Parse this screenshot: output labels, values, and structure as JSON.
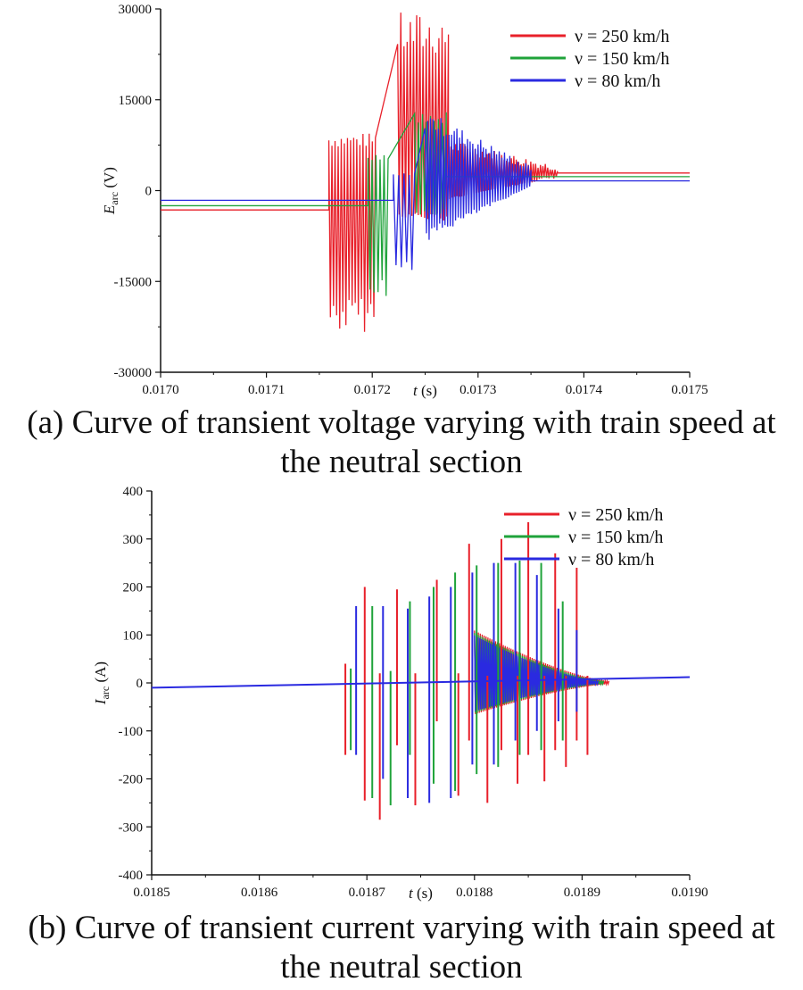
{
  "chart_data": [
    {
      "id": "a",
      "type": "line",
      "ylabel_symbol": "E",
      "ylabel_sub": "arc",
      "ylabel_unit": "(V)",
      "xlabel_symbol": "t",
      "xlabel_unit": "(s)",
      "xlim": [
        0.017,
        0.0175
      ],
      "ylim": [
        -30000,
        30000
      ],
      "xticks": [
        "0.0170",
        "0.0171",
        "0.0172",
        "0.0173",
        "0.0174",
        "0.0175"
      ],
      "yticks": [
        "30000",
        "15000",
        "0",
        "-15000",
        "-30000"
      ],
      "ytick_values": [
        30000,
        15000,
        0,
        -15000,
        -30000
      ],
      "legend": [
        {
          "label": "ν = 250 km/h",
          "color": "#e8202a"
        },
        {
          "label": "ν = 150 km/h",
          "color": "#1fa33a"
        },
        {
          "label": "ν = 80 km/h",
          "color": "#2a2ae0"
        }
      ],
      "series": [
        {
          "name": "ν = 250 km/h",
          "color": "#e8202a",
          "pre_level": -3200,
          "post_level": 2900,
          "bursts": [
            {
              "x0": 0.017159,
              "x1": 0.017203,
              "lo": -23500,
              "hi": 9500,
              "n": 30
            },
            {
              "x0": 0.017224,
              "x1": 0.017272,
              "lo": -5000,
              "hi": 29500,
              "n": 32
            },
            {
              "x0": 0.017272,
              "x1": 0.017375,
              "lo": -1500,
              "hi": 8500,
              "n": 90,
              "decay": true
            }
          ]
        },
        {
          "name": "ν = 150 km/h",
          "color": "#1fa33a",
          "pre_level": -2500,
          "post_level": 2300,
          "bursts": [
            {
              "x0": 0.017196,
              "x1": 0.017215,
              "lo": -19000,
              "hi": 6000,
              "n": 10
            },
            {
              "x0": 0.01724,
              "x1": 0.01727,
              "lo": -4000,
              "hi": 13000,
              "n": 16
            }
          ]
        },
        {
          "name": "ν = 80 km/h",
          "color": "#2a2ae0",
          "pre_level": -1600,
          "post_level": 1600,
          "bursts": [
            {
              "x0": 0.01722,
              "x1": 0.01724,
              "lo": -13500,
              "hi": 3000,
              "n": 8
            },
            {
              "x0": 0.01725,
              "x1": 0.01735,
              "lo": -8500,
              "hi": 13500,
              "n": 80,
              "decay": true
            }
          ]
        }
      ]
    },
    {
      "id": "b",
      "type": "line",
      "ylabel_symbol": "I",
      "ylabel_sub": "arc",
      "ylabel_unit": "(A)",
      "xlabel_symbol": "t",
      "xlabel_unit": "(s)",
      "xlim": [
        0.0185,
        0.019
      ],
      "ylim": [
        -400,
        400
      ],
      "xticks": [
        "0.0185",
        "0.0186",
        "0.0187",
        "0.0188",
        "0.0189",
        "0.0190"
      ],
      "yticks": [
        "400",
        "300",
        "200",
        "100",
        "0",
        "-100",
        "-200",
        "-300",
        "-400"
      ],
      "ytick_values": [
        400,
        300,
        200,
        100,
        0,
        -100,
        -200,
        -300,
        -400
      ],
      "legend": [
        {
          "label": "ν = 250 km/h",
          "color": "#e8202a"
        },
        {
          "label": "ν = 150 km/h",
          "color": "#1fa33a"
        },
        {
          "label": "ν = 80 km/h",
          "color": "#2a2ae0"
        }
      ],
      "baseline": {
        "start": -10,
        "end": 12
      },
      "series": [
        {
          "name": "ν = 250 km/h",
          "color": "#e8202a",
          "spikes": [
            [
              0.01868,
              40,
              -150
            ],
            [
              0.018698,
              200,
              -245
            ],
            [
              0.018712,
              20,
              -285
            ],
            [
              0.018728,
              195,
              -130
            ],
            [
              0.018745,
              20,
              -255
            ],
            [
              0.018765,
              215,
              -80
            ],
            [
              0.018785,
              20,
              -235
            ],
            [
              0.018795,
              290,
              -120
            ],
            [
              0.018812,
              15,
              -250
            ],
            [
              0.018825,
              300,
              -140
            ],
            [
              0.01884,
              15,
              -210
            ],
            [
              0.01885,
              335,
              -150
            ],
            [
              0.018865,
              15,
              -205
            ],
            [
              0.018875,
              270,
              -140
            ],
            [
              0.018885,
              15,
              -175
            ],
            [
              0.018895,
              240,
              -120
            ],
            [
              0.018905,
              15,
              -150
            ]
          ],
          "tail": {
            "x0": 0.0188,
            "x1": 0.018925,
            "amp": 105
          }
        },
        {
          "name": "ν = 150 km/h",
          "color": "#1fa33a",
          "spikes": [
            [
              0.018685,
              30,
              -140
            ],
            [
              0.018705,
              160,
              -240
            ],
            [
              0.018722,
              25,
              -255
            ],
            [
              0.01874,
              170,
              -150
            ],
            [
              0.018762,
              200,
              -210
            ],
            [
              0.018782,
              230,
              -225
            ],
            [
              0.018802,
              245,
              -190
            ],
            [
              0.018822,
              250,
              -175
            ],
            [
              0.018842,
              255,
              -150
            ],
            [
              0.018862,
              250,
              -140
            ],
            [
              0.018882,
              170,
              -120
            ]
          ],
          "tail": {
            "x0": 0.0188,
            "x1": 0.01892,
            "amp": 100
          }
        },
        {
          "name": "ν = 80 km/h",
          "color": "#2a2ae0",
          "spikes": [
            [
              0.01869,
              160,
              -150
            ],
            [
              0.018715,
              160,
              -200
            ],
            [
              0.018738,
              155,
              -240
            ],
            [
              0.018758,
              180,
              -250
            ],
            [
              0.018778,
              200,
              -240
            ],
            [
              0.018798,
              230,
              -170
            ],
            [
              0.018818,
              250,
              -170
            ],
            [
              0.018838,
              250,
              -120
            ],
            [
              0.018858,
              225,
              -100
            ],
            [
              0.018878,
              155,
              -80
            ],
            [
              0.018895,
              110,
              -60
            ]
          ],
          "tail": {
            "x0": 0.0188,
            "x1": 0.018915,
            "amp": 95
          }
        }
      ]
    }
  ],
  "captions": {
    "a_line1": "(a) Curve of transient voltage varying with train speed at",
    "a_line2": "the neutral section",
    "b_line1": "(b) Curve of transient current varying with train speed at",
    "b_line2": "the neutral section"
  }
}
